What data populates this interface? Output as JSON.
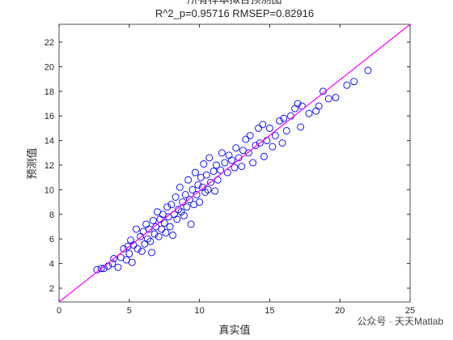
{
  "chart_data": {
    "type": "scatter",
    "title": "所有样本拟合预测图",
    "subtitle": "R^2_p=0.95716  RMSEP=0.82916",
    "x_label": "真实值",
    "y_label": "预测值",
    "watermark": "公众号 · 天天Matlab",
    "color": "#0000ff",
    "line_color": "#ff00ff",
    "xlim": [
      0,
      25
    ],
    "ylim": [
      0.88,
      23.45
    ],
    "xticks": [
      0,
      5,
      10,
      15,
      20,
      25
    ],
    "yticks": [
      2,
      4,
      6,
      8,
      10,
      12,
      14,
      16,
      18,
      20,
      22
    ],
    "fit_line": {
      "x": [
        0,
        25
      ],
      "y": [
        0.88,
        23.45
      ]
    },
    "x": [
      2.7,
      3.0,
      3.2,
      3.5,
      3.8,
      3.9,
      4.2,
      4.4,
      4.6,
      4.8,
      4.9,
      5.0,
      5.1,
      5.2,
      5.3,
      5.5,
      5.6,
      5.8,
      5.9,
      6.0,
      6.1,
      6.2,
      6.3,
      6.4,
      6.5,
      6.6,
      6.7,
      6.8,
      6.9,
      7.0,
      7.1,
      7.2,
      7.3,
      7.4,
      7.5,
      7.6,
      7.7,
      7.8,
      7.9,
      8.0,
      8.1,
      8.2,
      8.3,
      8.4,
      8.5,
      8.6,
      8.7,
      8.8,
      8.9,
      9.0,
      9.1,
      9.2,
      9.3,
      9.4,
      9.5,
      9.6,
      9.7,
      9.8,
      9.9,
      10.0,
      10.1,
      10.2,
      10.3,
      10.4,
      10.5,
      10.6,
      10.7,
      10.8,
      11.0,
      11.1,
      11.2,
      11.3,
      11.5,
      11.6,
      11.8,
      12.0,
      12.1,
      12.3,
      12.5,
      12.6,
      12.8,
      13.0,
      13.1,
      13.3,
      13.5,
      13.6,
      13.8,
      14.0,
      14.2,
      14.3,
      14.5,
      14.6,
      14.8,
      15.0,
      15.2,
      15.4,
      15.7,
      15.9,
      16.0,
      16.2,
      16.5,
      16.8,
      17.0,
      17.2,
      17.3,
      17.8,
      18.3,
      18.5,
      18.8,
      19.2,
      19.7,
      20.5,
      21.0,
      22.0
    ],
    "y": [
      3.5,
      3.6,
      3.6,
      3.8,
      4.0,
      4.4,
      3.7,
      4.5,
      5.2,
      4.3,
      5.4,
      4.8,
      5.9,
      4.1,
      5.5,
      6.8,
      5.2,
      6.2,
      5.0,
      6.6,
      5.6,
      7.2,
      6.0,
      6.8,
      5.8,
      4.9,
      7.5,
      6.4,
      7.0,
      8.2,
      6.2,
      7.6,
      6.8,
      8.0,
      7.3,
      6.5,
      8.6,
      7.8,
      7.0,
      8.8,
      6.3,
      8.0,
      9.4,
      7.6,
      8.4,
      10.2,
      8.2,
      9.0,
      7.9,
      9.6,
      8.6,
      10.8,
      9.2,
      7.2,
      10.0,
      8.8,
      11.4,
      9.6,
      10.4,
      9.0,
      11.0,
      10.2,
      12.1,
      9.8,
      11.2,
      10.0,
      12.6,
      10.6,
      11.5,
      9.9,
      12.0,
      10.8,
      11.6,
      13.0,
      12.2,
      11.4,
      12.8,
      12.4,
      11.8,
      13.4,
      12.6,
      11.9,
      13.2,
      14.1,
      13.0,
      14.4,
      12.2,
      13.6,
      15.0,
      13.8,
      15.3,
      12.7,
      14.0,
      15.0,
      13.5,
      14.4,
      15.6,
      13.8,
      15.8,
      14.8,
      16.0,
      16.6,
      17.0,
      15.1,
      16.8,
      16.2,
      16.4,
      16.8,
      18.0,
      17.4,
      17.5,
      18.5,
      18.8,
      19.7
    ]
  }
}
